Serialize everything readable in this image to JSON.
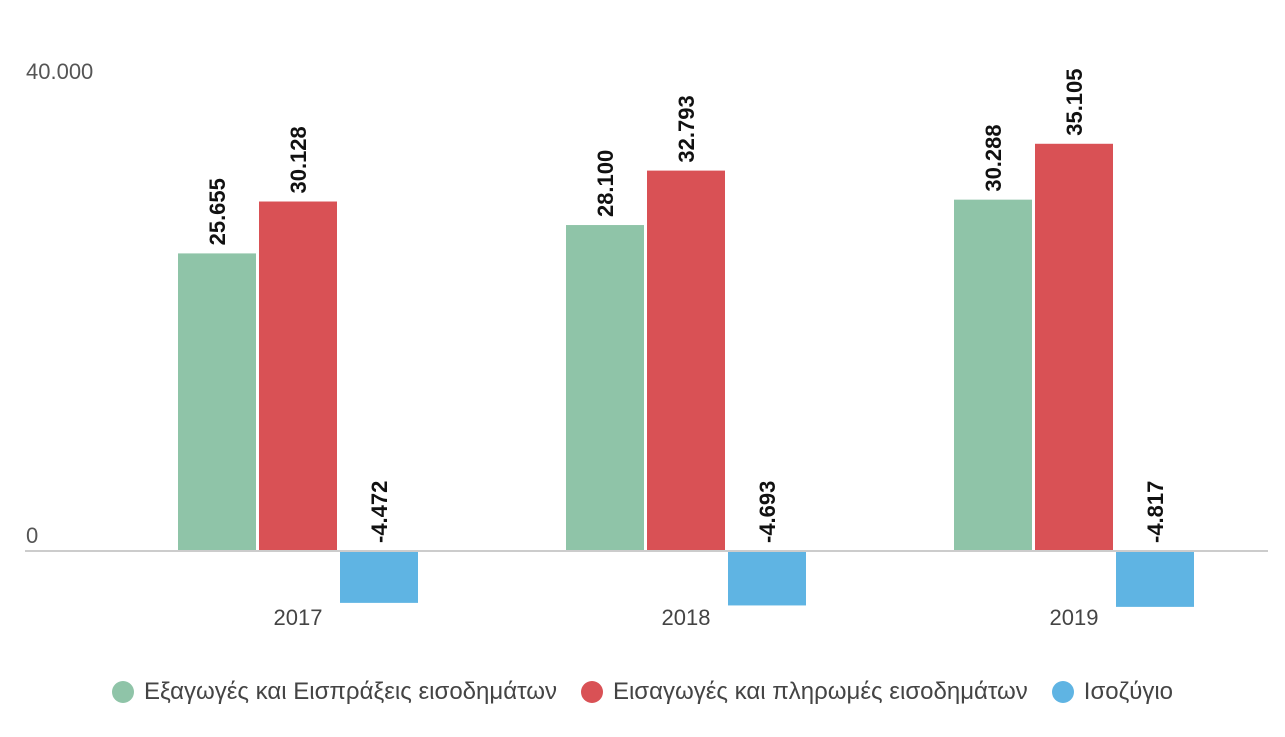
{
  "chart_data": {
    "type": "bar",
    "categories": [
      "2017",
      "2018",
      "2019"
    ],
    "series": [
      {
        "name": "Εξαγωγές και Εισπράξεις εισοδημάτων",
        "values": [
          25655,
          28100,
          30288
        ],
        "labels": [
          "25.655",
          "28.100",
          "30.288"
        ],
        "color": "#8fc4a8"
      },
      {
        "name": "Εισαγωγές και πληρωμές εισοδημάτων",
        "values": [
          30128,
          32793,
          35105
        ],
        "labels": [
          "30.128",
          "32.793",
          "35.105"
        ],
        "color": "#d95155"
      },
      {
        "name": "Ισοζύγιο",
        "values": [
          -4472,
          -4693,
          -4817
        ],
        "labels": [
          "-4.472",
          "-4.693",
          "-4.817"
        ],
        "color": "#5fb4e3"
      }
    ],
    "y_ticks": [
      {
        "value": 0,
        "label": "0"
      },
      {
        "value": 40000,
        "label": "40.000"
      }
    ],
    "ylim": [
      -4817,
      40000
    ],
    "grid": false,
    "legend_position": "bottom"
  }
}
